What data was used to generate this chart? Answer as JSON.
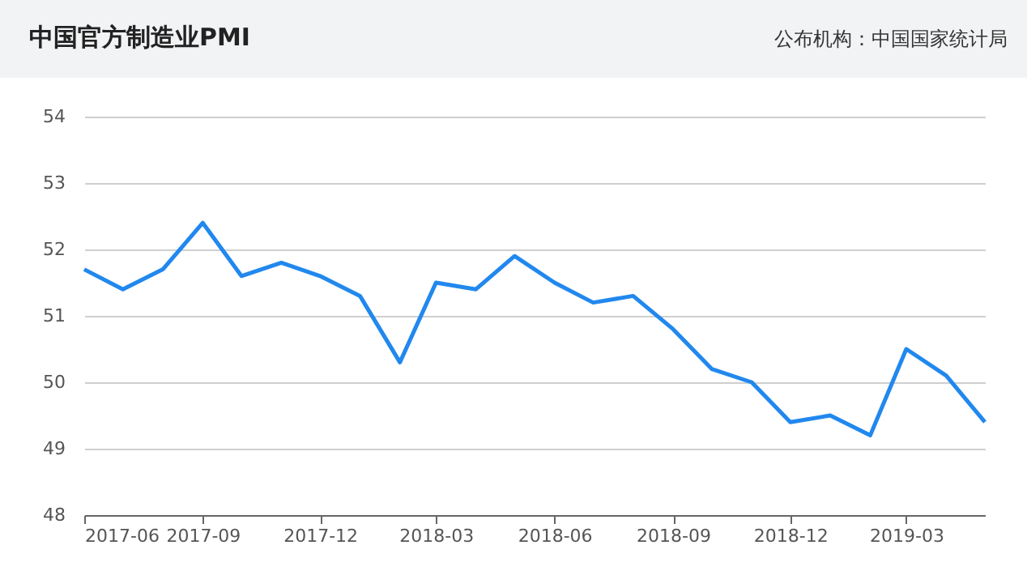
{
  "chart_data": {
    "type": "line",
    "title": "中国官方制造业PMI",
    "annotations": [
      "公布机构：中国国家统计局"
    ],
    "x": [
      "2017-06",
      "2017-07",
      "2017-08",
      "2017-09",
      "2017-10",
      "2017-11",
      "2017-12",
      "2018-01",
      "2018-02",
      "2018-03",
      "2018-04",
      "2018-05",
      "2018-06",
      "2018-07",
      "2018-08",
      "2018-09",
      "2018-10",
      "2018-11",
      "2018-12",
      "2019-01",
      "2019-02",
      "2019-03",
      "2019-04",
      "2019-05"
    ],
    "series": [
      {
        "color": "#2188ee",
        "values": [
          51.7,
          51.4,
          51.7,
          52.4,
          51.6,
          51.8,
          51.6,
          51.3,
          50.3,
          51.5,
          51.4,
          51.9,
          51.5,
          51.2,
          51.3,
          50.8,
          50.2,
          50.0,
          49.4,
          49.5,
          49.2,
          50.5,
          50.1,
          49.4
        ]
      }
    ],
    "xlim": [
      "2017-06",
      "2019-05"
    ],
    "xticks": [
      "2017-06",
      "2017-09",
      "2017-12",
      "2018-03",
      "2018-06",
      "2018-09",
      "2018-12",
      "2019-03"
    ],
    "ylim": [
      48,
      54
    ],
    "yticks": [
      48,
      49,
      50,
      51,
      52,
      53,
      54
    ],
    "grid": "y",
    "marker": "none",
    "line_style": "solid"
  }
}
